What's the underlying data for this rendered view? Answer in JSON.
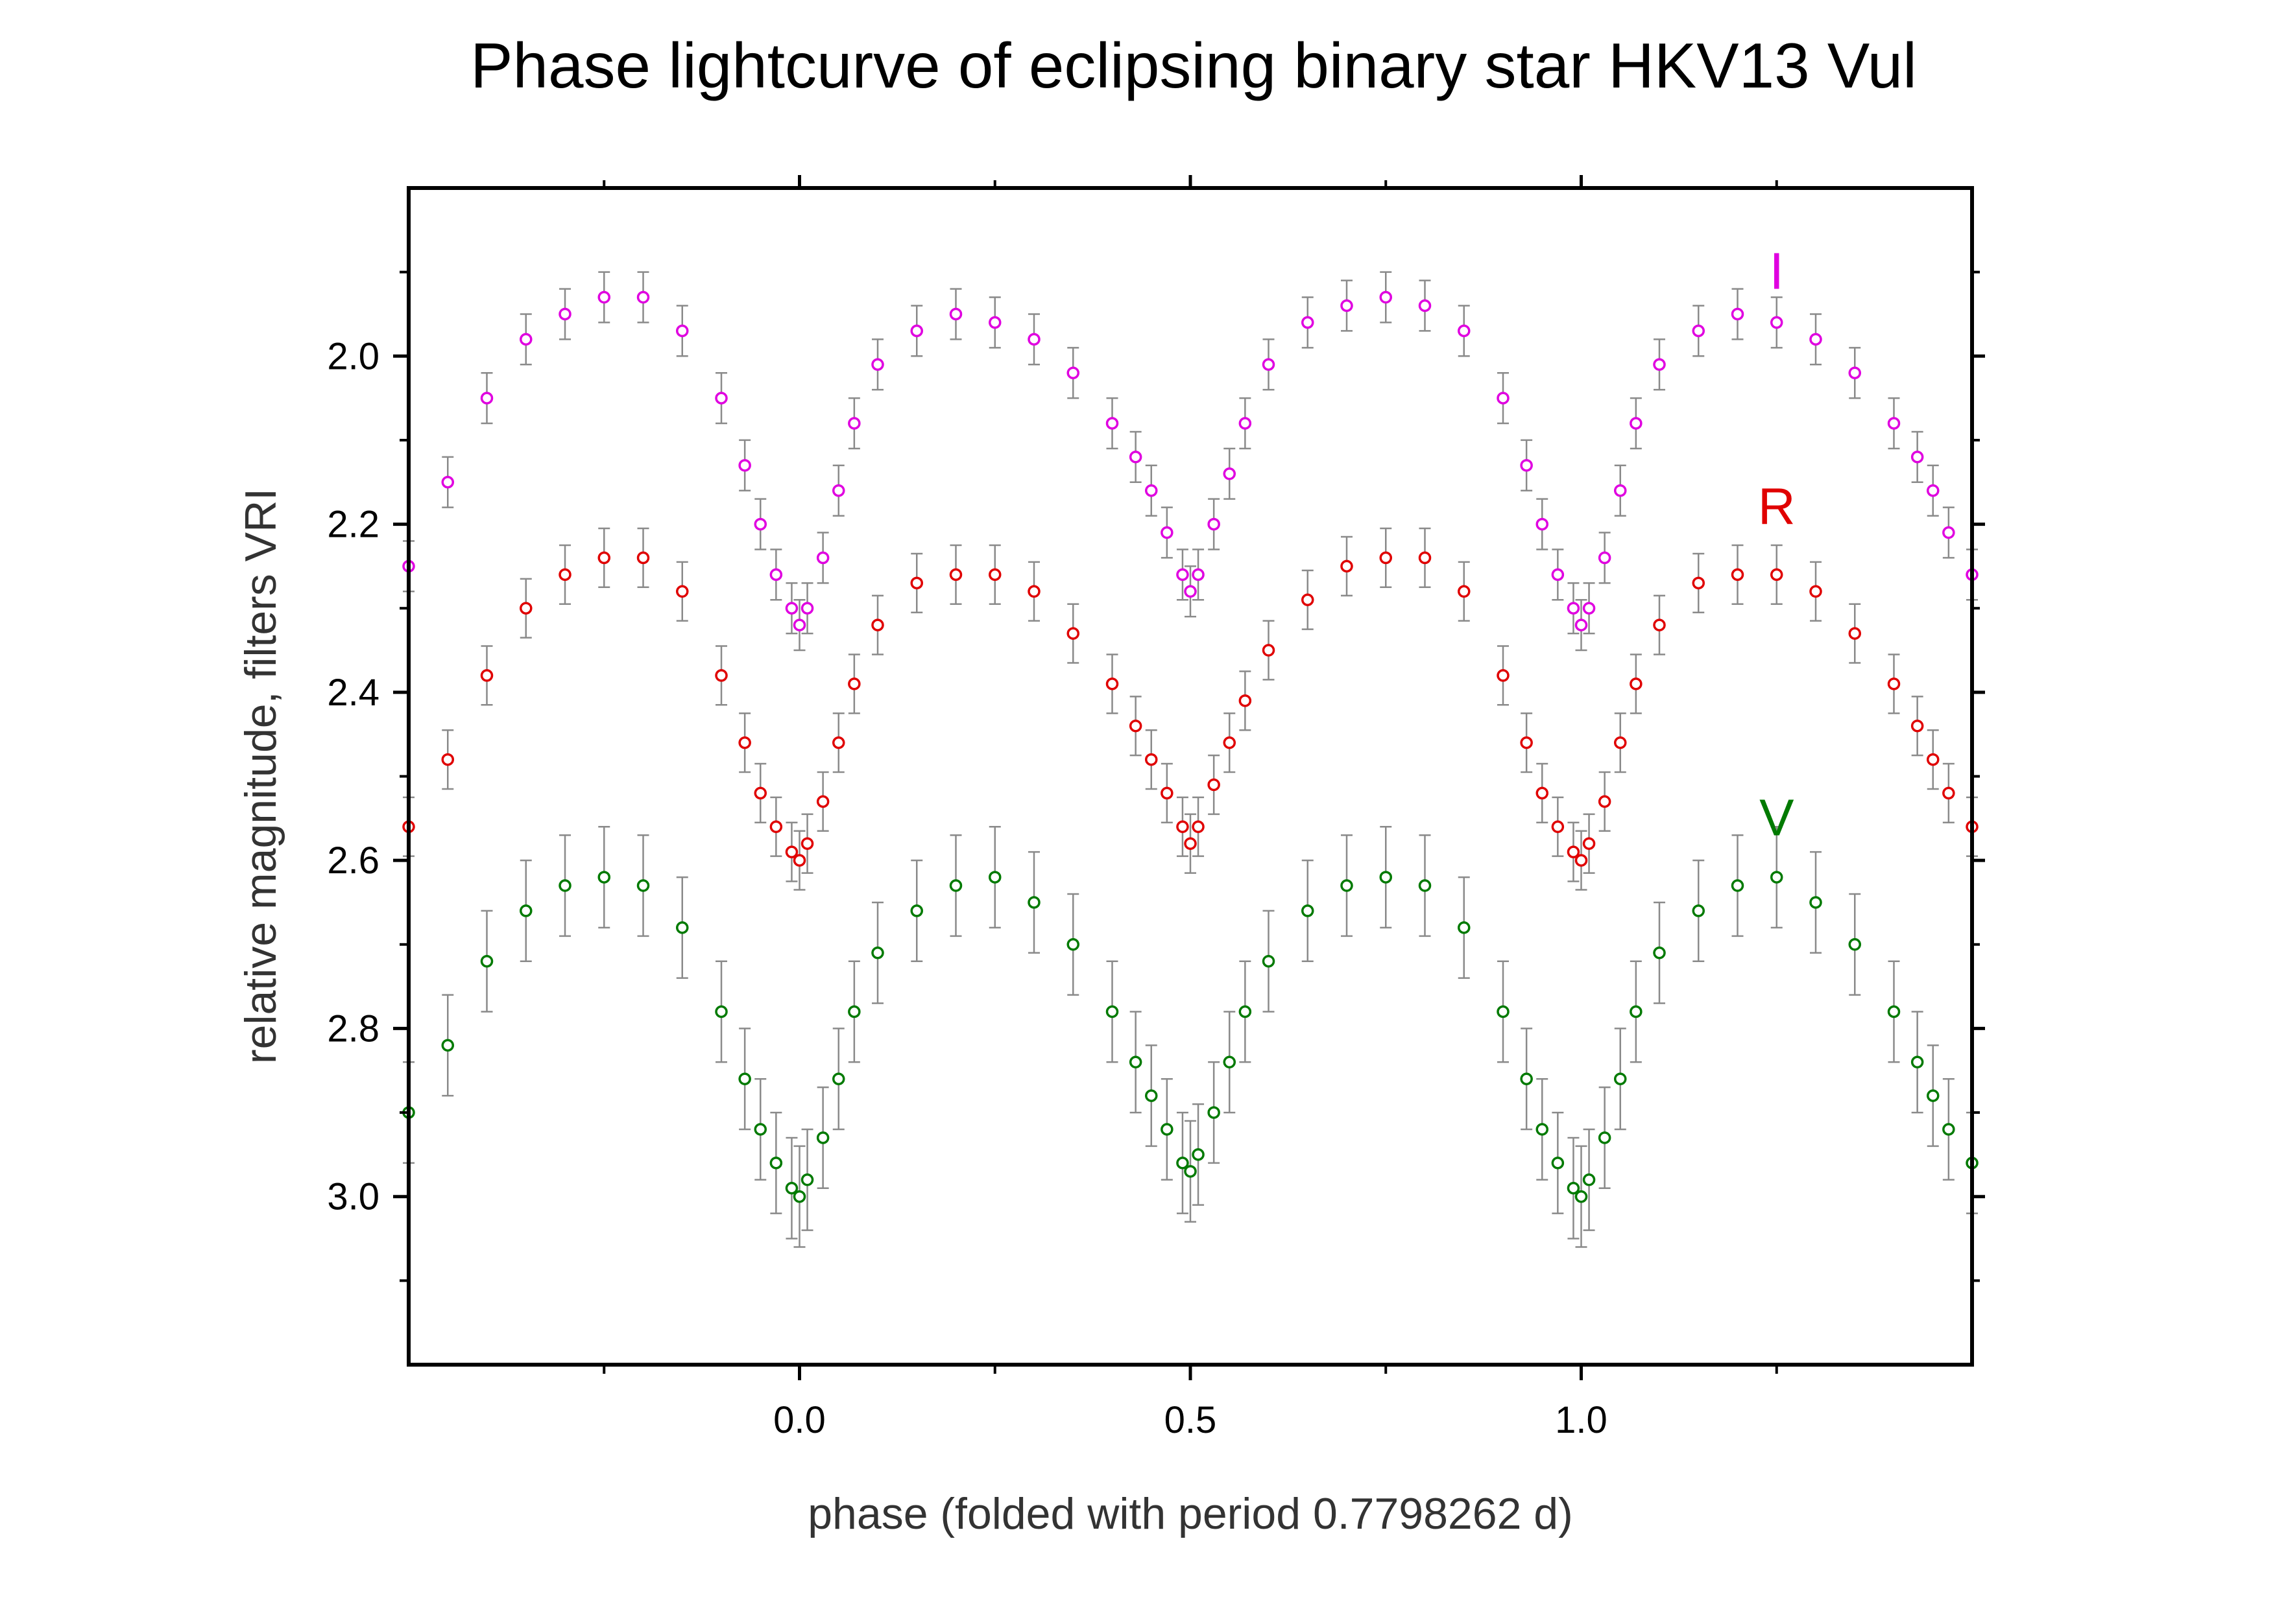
{
  "chart_data": {
    "type": "scatter",
    "title": "Phase lightcurve of eclipsing binary star HKV13 Vul",
    "xlabel": "phase  (folded with period 0.7798262 d)",
    "ylabel": "relative magnitude, filters VRI",
    "xlim": [
      -0.5,
      1.5
    ],
    "ylim": [
      3.2,
      1.8
    ],
    "y_inverted": true,
    "x_ticks": [
      {
        "value": 0.0,
        "label": "0.0"
      },
      {
        "value": 0.5,
        "label": "0.5"
      },
      {
        "value": 1.0,
        "label": "1.0"
      }
    ],
    "x_minor_ticks": [
      -0.25,
      0.25,
      0.75,
      1.25
    ],
    "y_ticks": [
      {
        "value": 2.0,
        "label": "2.0"
      },
      {
        "value": 2.2,
        "label": "2.2"
      },
      {
        "value": 2.4,
        "label": "2.4"
      },
      {
        "value": 2.6,
        "label": "2.6"
      },
      {
        "value": 2.8,
        "label": "2.8"
      },
      {
        "value": 3.0,
        "label": "3.0"
      }
    ],
    "y_minor_ticks": [
      1.9,
      2.1,
      2.3,
      2.5,
      2.7,
      2.9,
      3.1
    ],
    "grid": false,
    "legend": "none",
    "error_bar_color": "#8a8a8a",
    "series": [
      {
        "name": "I",
        "label_position": [
          1.25,
          1.92
        ],
        "color": "#e000e0",
        "error": 0.03,
        "x": [
          -0.5,
          -0.45,
          -0.4,
          -0.35,
          -0.3,
          -0.25,
          -0.2,
          -0.15,
          -0.1,
          -0.07,
          -0.05,
          -0.03,
          -0.01,
          0.0,
          0.01,
          0.03,
          0.05,
          0.07,
          0.1,
          0.15,
          0.2,
          0.25,
          0.3,
          0.35,
          0.4,
          0.43,
          0.45,
          0.47,
          0.49,
          0.5,
          0.51,
          0.53,
          0.55,
          0.57,
          0.6,
          0.65,
          0.7,
          0.75,
          0.8,
          0.85,
          0.9,
          0.93,
          0.95,
          0.97,
          0.99,
          1.0,
          1.01,
          1.03,
          1.05,
          1.07,
          1.1,
          1.15,
          1.2,
          1.25,
          1.3,
          1.35,
          1.4,
          1.43,
          1.45,
          1.47,
          1.5
        ],
        "y": [
          2.25,
          2.15,
          2.05,
          1.98,
          1.95,
          1.93,
          1.93,
          1.97,
          2.05,
          2.13,
          2.2,
          2.26,
          2.3,
          2.32,
          2.3,
          2.24,
          2.16,
          2.08,
          2.01,
          1.97,
          1.95,
          1.96,
          1.98,
          2.02,
          2.08,
          2.12,
          2.16,
          2.21,
          2.26,
          2.28,
          2.26,
          2.2,
          2.14,
          2.08,
          2.01,
          1.96,
          1.94,
          1.93,
          1.94,
          1.97,
          2.05,
          2.13,
          2.2,
          2.26,
          2.3,
          2.32,
          2.3,
          2.24,
          2.16,
          2.08,
          2.01,
          1.97,
          1.95,
          1.96,
          1.98,
          2.02,
          2.08,
          2.12,
          2.16,
          2.21,
          2.26
        ]
      },
      {
        "name": "R",
        "label_position": [
          1.25,
          2.2
        ],
        "color": "#e00000",
        "error": 0.035,
        "x": [
          -0.5,
          -0.45,
          -0.4,
          -0.35,
          -0.3,
          -0.25,
          -0.2,
          -0.15,
          -0.1,
          -0.07,
          -0.05,
          -0.03,
          -0.01,
          0.0,
          0.01,
          0.03,
          0.05,
          0.07,
          0.1,
          0.15,
          0.2,
          0.25,
          0.3,
          0.35,
          0.4,
          0.43,
          0.45,
          0.47,
          0.49,
          0.5,
          0.51,
          0.53,
          0.55,
          0.57,
          0.6,
          0.65,
          0.7,
          0.75,
          0.8,
          0.85,
          0.9,
          0.93,
          0.95,
          0.97,
          0.99,
          1.0,
          1.01,
          1.03,
          1.05,
          1.07,
          1.1,
          1.15,
          1.2,
          1.25,
          1.3,
          1.35,
          1.4,
          1.43,
          1.45,
          1.47,
          1.5
        ],
        "y": [
          2.56,
          2.48,
          2.38,
          2.3,
          2.26,
          2.24,
          2.24,
          2.28,
          2.38,
          2.46,
          2.52,
          2.56,
          2.59,
          2.6,
          2.58,
          2.53,
          2.46,
          2.39,
          2.32,
          2.27,
          2.26,
          2.26,
          2.28,
          2.33,
          2.39,
          2.44,
          2.48,
          2.52,
          2.56,
          2.58,
          2.56,
          2.51,
          2.46,
          2.41,
          2.35,
          2.29,
          2.25,
          2.24,
          2.24,
          2.28,
          2.38,
          2.46,
          2.52,
          2.56,
          2.59,
          2.6,
          2.58,
          2.53,
          2.46,
          2.39,
          2.32,
          2.27,
          2.26,
          2.26,
          2.28,
          2.33,
          2.39,
          2.44,
          2.48,
          2.52,
          2.56
        ]
      },
      {
        "name": "V",
        "label_position": [
          1.25,
          2.57
        ],
        "color": "#007a00",
        "error": 0.06,
        "x": [
          -0.5,
          -0.45,
          -0.4,
          -0.35,
          -0.3,
          -0.25,
          -0.2,
          -0.15,
          -0.1,
          -0.07,
          -0.05,
          -0.03,
          -0.01,
          0.0,
          0.01,
          0.03,
          0.05,
          0.07,
          0.1,
          0.15,
          0.2,
          0.25,
          0.3,
          0.35,
          0.4,
          0.43,
          0.45,
          0.47,
          0.49,
          0.5,
          0.51,
          0.53,
          0.55,
          0.57,
          0.6,
          0.65,
          0.7,
          0.75,
          0.8,
          0.85,
          0.9,
          0.93,
          0.95,
          0.97,
          0.99,
          1.0,
          1.01,
          1.03,
          1.05,
          1.07,
          1.1,
          1.15,
          1.2,
          1.25,
          1.3,
          1.35,
          1.4,
          1.43,
          1.45,
          1.47,
          1.5
        ],
        "y": [
          2.9,
          2.82,
          2.72,
          2.66,
          2.63,
          2.62,
          2.63,
          2.68,
          2.78,
          2.86,
          2.92,
          2.96,
          2.99,
          3.0,
          2.98,
          2.93,
          2.86,
          2.78,
          2.71,
          2.66,
          2.63,
          2.62,
          2.65,
          2.7,
          2.78,
          2.84,
          2.88,
          2.92,
          2.96,
          2.97,
          2.95,
          2.9,
          2.84,
          2.78,
          2.72,
          2.66,
          2.63,
          2.62,
          2.63,
          2.68,
          2.78,
          2.86,
          2.92,
          2.96,
          2.99,
          3.0,
          2.98,
          2.93,
          2.86,
          2.78,
          2.71,
          2.66,
          2.63,
          2.62,
          2.65,
          2.7,
          2.78,
          2.84,
          2.88,
          2.92,
          2.96
        ]
      }
    ]
  }
}
